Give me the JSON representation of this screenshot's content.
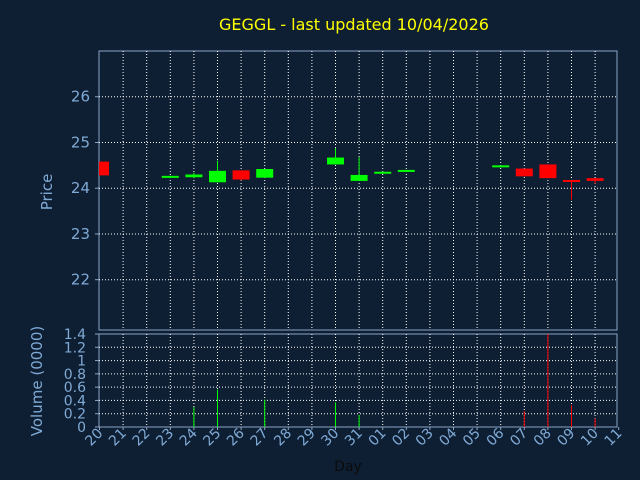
{
  "chart_data": {
    "type": "candlestick",
    "title": "GEGGL - last updated 10/04/2026",
    "xlabel": "Day",
    "ylabel_price": "Price",
    "ylabel_volume": "Volume (0000)",
    "price_ylim": [
      20.9,
      27.0
    ],
    "price_ticks": [
      "22",
      "23",
      "24",
      "25",
      "26"
    ],
    "price_tick_values": [
      22,
      23,
      24,
      25,
      26
    ],
    "volume_ylim": [
      0,
      1.4
    ],
    "volume_ticks": [
      "0",
      "0.2",
      "0.4",
      "0.6",
      "0.8",
      "1",
      "1.2",
      "1.4"
    ],
    "volume_tick_values": [
      0,
      0.2,
      0.4,
      0.6,
      0.8,
      1.0,
      1.2,
      1.4
    ],
    "x_labels": [
      "20",
      "21",
      "22",
      "23",
      "24",
      "25",
      "26",
      "27",
      "28",
      "29",
      "30",
      "31",
      "01",
      "02",
      "03",
      "04",
      "05",
      "06",
      "07",
      "08",
      "09",
      "10",
      "11"
    ],
    "grid": true,
    "colors": {
      "background": "#0f1f33",
      "plot_border": "#8aa6c4",
      "grid": "#ffffff",
      "up": "#00ff00",
      "down": "#ff0000",
      "title": "#ffff00",
      "axis_text": "#7faad6"
    },
    "candles": [
      {
        "x": "20",
        "open": 24.58,
        "close": 24.28,
        "high": 24.58,
        "low": 24.28
      },
      {
        "x": "23",
        "open": 24.24,
        "close": 24.27,
        "high": 24.27,
        "low": 24.24
      },
      {
        "x": "24",
        "open": 24.24,
        "close": 24.3,
        "high": 24.34,
        "low": 24.22
      },
      {
        "x": "25",
        "open": 24.13,
        "close": 24.38,
        "high": 24.6,
        "low": 24.13
      },
      {
        "x": "26",
        "open": 24.39,
        "close": 24.19,
        "high": 24.39,
        "low": 24.17
      },
      {
        "x": "27",
        "open": 24.23,
        "close": 24.42,
        "high": 24.42,
        "low": 24.23
      },
      {
        "x": "30",
        "open": 24.52,
        "close": 24.67,
        "high": 24.88,
        "low": 24.52
      },
      {
        "x": "31",
        "open": 24.16,
        "close": 24.29,
        "high": 24.68,
        "low": 24.16
      },
      {
        "x": "01",
        "open": 24.33,
        "close": 24.36,
        "high": 24.36,
        "low": 24.33
      },
      {
        "x": "02",
        "open": 24.38,
        "close": 24.4,
        "high": 24.4,
        "low": 24.38
      },
      {
        "x": "06",
        "open": 24.48,
        "close": 24.5,
        "high": 24.5,
        "low": 24.48
      },
      {
        "x": "07",
        "open": 24.43,
        "close": 24.26,
        "high": 24.43,
        "low": 24.26
      },
      {
        "x": "08",
        "open": 24.52,
        "close": 24.22,
        "high": 24.52,
        "low": 24.22
      },
      {
        "x": "09",
        "open": 24.18,
        "close": 24.15,
        "high": 24.18,
        "low": 23.75
      },
      {
        "x": "10",
        "open": 24.22,
        "close": 24.16,
        "high": 24.22,
        "low": 24.1
      }
    ],
    "volume": [
      {
        "x": "24",
        "value": 0.3,
        "dir": "up"
      },
      {
        "x": "25",
        "value": 0.56,
        "dir": "up"
      },
      {
        "x": "27",
        "value": 0.41,
        "dir": "up"
      },
      {
        "x": "30",
        "value": 0.37,
        "dir": "up"
      },
      {
        "x": "31",
        "value": 0.18,
        "dir": "up"
      },
      {
        "x": "07",
        "value": 0.24,
        "dir": "down"
      },
      {
        "x": "08",
        "value": 1.4,
        "dir": "down"
      },
      {
        "x": "09",
        "value": 0.33,
        "dir": "down"
      },
      {
        "x": "10",
        "value": 0.13,
        "dir": "down"
      }
    ]
  }
}
